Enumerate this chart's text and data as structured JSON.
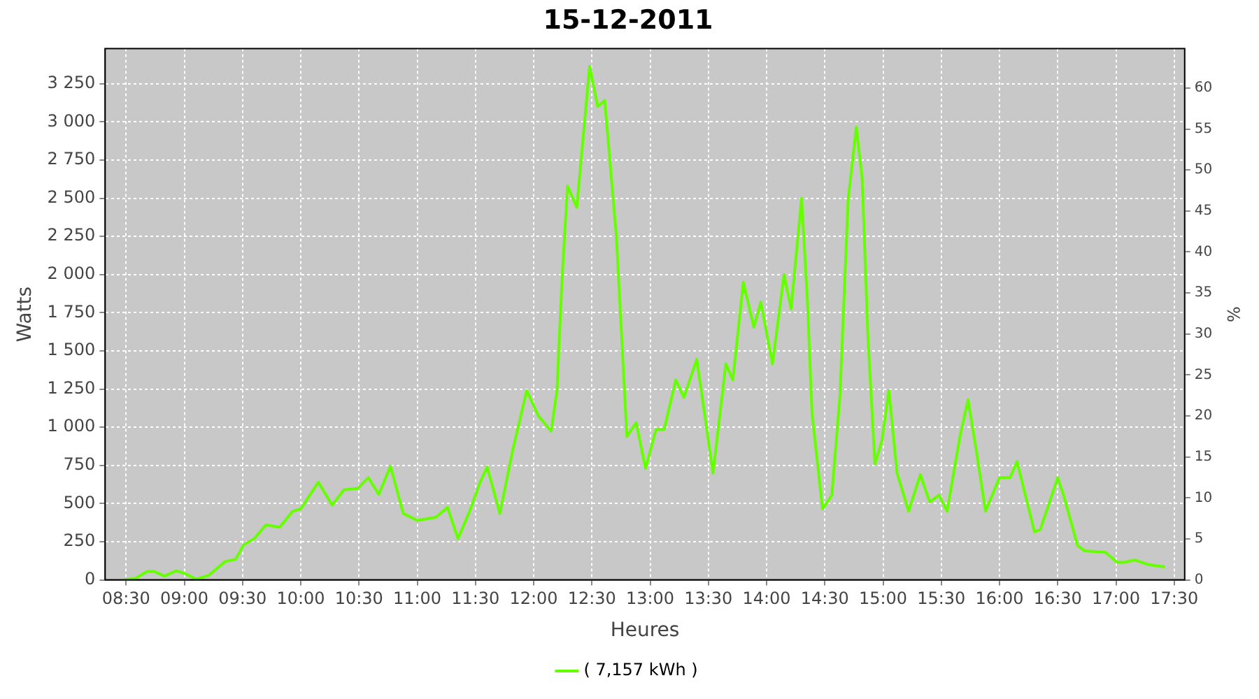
{
  "chart_data": {
    "type": "line",
    "title": "15-12-2011",
    "xlabel": "Heures",
    "ylabel": "Watts",
    "y2label": "%",
    "xlim": [
      8.32,
      17.59
    ],
    "xticks": [
      {
        "value": 8.5,
        "label": "08:30"
      },
      {
        "value": 9,
        "label": "09:00"
      },
      {
        "value": 9.5,
        "label": "09:30"
      },
      {
        "value": 10,
        "label": "10:00"
      },
      {
        "value": 10.5,
        "label": "10:30"
      },
      {
        "value": 11,
        "label": "11:00"
      },
      {
        "value": 11.5,
        "label": "11:30"
      },
      {
        "value": 12,
        "label": "12:00"
      },
      {
        "value": 12.5,
        "label": "12:30"
      },
      {
        "value": 13,
        "label": "13:00"
      },
      {
        "value": 13.5,
        "label": "13:30"
      },
      {
        "value": 14,
        "label": "14:00"
      },
      {
        "value": 14.5,
        "label": "14:30"
      },
      {
        "value": 15,
        "label": "15:00"
      },
      {
        "value": 15.5,
        "label": "15:30"
      },
      {
        "value": 16,
        "label": "16:00"
      },
      {
        "value": 16.5,
        "label": "16:30"
      },
      {
        "value": 17,
        "label": "17:00"
      },
      {
        "value": 17.5,
        "label": "17:30"
      }
    ],
    "ylim": [
      0,
      3480
    ],
    "yticks": [
      0,
      250,
      500,
      750,
      {
        "value": 1000,
        "label": "1 000"
      },
      {
        "value": 1250,
        "label": "1 250"
      },
      {
        "value": 1500,
        "label": "1 500"
      },
      {
        "value": 1750,
        "label": "1 750"
      },
      {
        "value": 2000,
        "label": "2 000"
      },
      {
        "value": 2250,
        "label": "2 250"
      },
      {
        "value": 2500,
        "label": "2 500"
      },
      {
        "value": 2750,
        "label": "2 750"
      },
      {
        "value": 3000,
        "label": "3 000"
      },
      {
        "value": 3250,
        "label": "3 250"
      }
    ],
    "y2lim": [
      0,
      64.8
    ],
    "y2ticks": [
      0,
      5,
      10,
      15,
      20,
      25,
      30,
      35,
      40,
      45,
      50,
      55,
      60
    ],
    "grid": true,
    "legend": "bottom",
    "marker": "none",
    "line_style": "solid",
    "series": [
      {
        "name": "( 7,157 kWh )",
        "color": "#66ff00",
        "x": [
          8.48,
          8.58,
          8.68,
          8.74,
          8.83,
          8.93,
          9.01,
          9.1,
          9.21,
          9.35,
          9.44,
          9.51,
          9.6,
          9.7,
          9.82,
          9.93,
          10.0,
          10.15,
          10.27,
          10.37,
          10.49,
          10.58,
          10.67,
          10.77,
          10.88,
          11.0,
          11.16,
          11.26,
          11.35,
          11.45,
          11.54,
          11.6,
          11.71,
          11.82,
          11.94,
          12.04,
          12.15,
          12.2,
          12.24,
          12.29,
          12.37,
          12.48,
          12.55,
          12.61,
          12.71,
          12.8,
          12.88,
          12.96,
          13.05,
          13.12,
          13.22,
          13.29,
          13.4,
          13.54,
          13.65,
          13.71,
          13.8,
          13.89,
          13.95,
          14.05,
          14.15,
          14.21,
          14.3,
          14.35,
          14.39,
          14.48,
          14.56,
          14.63,
          14.7,
          14.77,
          14.82,
          14.87,
          14.93,
          14.99,
          15.05,
          15.12,
          15.22,
          15.32,
          15.4,
          15.48,
          15.55,
          15.66,
          15.73,
          15.8,
          15.88,
          16.0,
          16.09,
          16.15,
          16.3,
          16.35,
          16.5,
          16.55,
          16.67,
          16.73,
          16.91,
          17.01,
          17.07,
          17.16,
          17.28,
          17.42
        ],
        "values": [
          0,
          10,
          55,
          55,
          25,
          60,
          40,
          5,
          30,
          120,
          135,
          230,
          270,
          360,
          345,
          450,
          465,
          640,
          490,
          590,
          600,
          670,
          560,
          745,
          435,
          390,
          410,
          475,
          270,
          450,
          640,
          740,
          435,
          850,
          1240,
          1075,
          975,
          1240,
          1920,
          2580,
          2440,
          3365,
          3100,
          3140,
          2250,
          940,
          1030,
          730,
          985,
          985,
          1310,
          1195,
          1445,
          700,
          1415,
          1310,
          1950,
          1655,
          1820,
          1415,
          2000,
          1775,
          2500,
          1835,
          1090,
          465,
          555,
          1210,
          2490,
          2965,
          2635,
          1595,
          760,
          910,
          1240,
          700,
          450,
          690,
          510,
          555,
          450,
          940,
          1180,
          850,
          450,
          670,
          670,
          775,
          315,
          330,
          670,
          555,
          225,
          190,
          180,
          115,
          115,
          130,
          100,
          85
        ]
      }
    ]
  }
}
